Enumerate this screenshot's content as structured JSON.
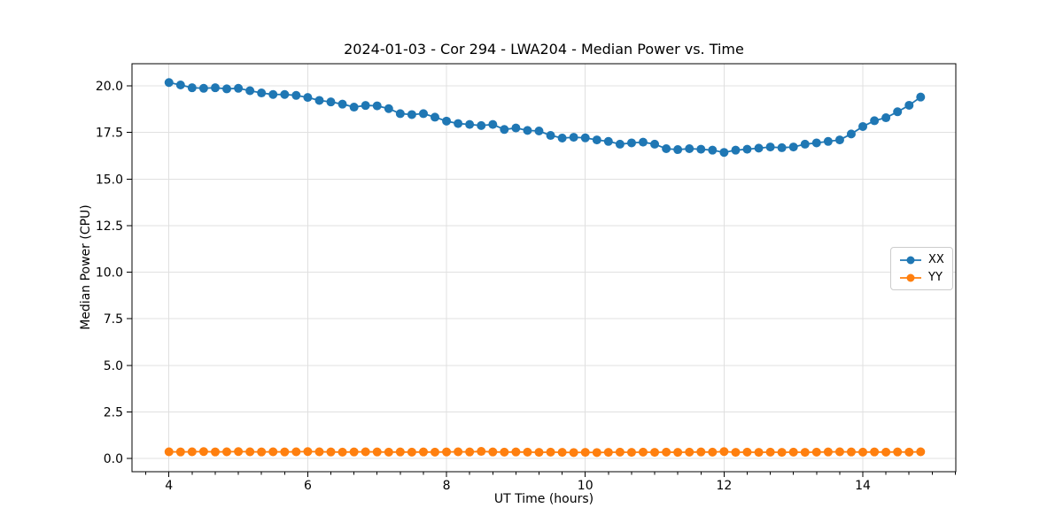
{
  "figure": {
    "background": "#ffffff"
  },
  "chart_data": {
    "type": "line",
    "title": "2024-01-03 - Cor 294 - LWA204 - Median Power vs. Time",
    "xlabel": "UT Time (hours)",
    "ylabel": "Median Power (CPU)",
    "xlim": [
      3.467,
      15.34
    ],
    "ylim": [
      -0.71,
      21.19
    ],
    "xticks": [
      4,
      6,
      8,
      10,
      12,
      14
    ],
    "xtick_labels": [
      "4",
      "6",
      "8",
      "10",
      "12",
      "14"
    ],
    "x_minor_step": 0.33333,
    "yticks": [
      0.0,
      2.5,
      5.0,
      7.5,
      10.0,
      12.5,
      15.0,
      17.5,
      20.0
    ],
    "ytick_labels": [
      "0.0",
      "2.5",
      "5.0",
      "7.5",
      "10.0",
      "12.5",
      "15.0",
      "17.5",
      "20.0"
    ],
    "grid": true,
    "grid_color": "#e0e0e0",
    "spine_color": "#000000",
    "legend_position": "center right",
    "x": [
      4.0,
      4.167,
      4.333,
      4.5,
      4.667,
      4.833,
      5.0,
      5.167,
      5.333,
      5.5,
      5.667,
      5.833,
      6.0,
      6.167,
      6.333,
      6.5,
      6.667,
      6.833,
      7.0,
      7.167,
      7.333,
      7.5,
      7.667,
      7.833,
      8.0,
      8.167,
      8.333,
      8.5,
      8.667,
      8.833,
      9.0,
      9.167,
      9.333,
      9.5,
      9.667,
      9.833,
      10.0,
      10.167,
      10.333,
      10.5,
      10.667,
      10.833,
      11.0,
      11.167,
      11.333,
      11.5,
      11.667,
      11.833,
      12.0,
      12.167,
      12.333,
      12.5,
      12.667,
      12.833,
      13.0,
      13.167,
      13.333,
      13.5,
      13.667,
      13.833,
      14.0,
      14.167,
      14.333,
      14.5,
      14.667,
      14.833
    ],
    "series": [
      {
        "name": "XX",
        "color": "#1f77b4",
        "values": [
          20.18,
          20.05,
          19.9,
          19.87,
          19.9,
          19.84,
          19.87,
          19.74,
          19.62,
          19.54,
          19.54,
          19.49,
          19.38,
          19.22,
          19.14,
          19.02,
          18.86,
          18.95,
          18.93,
          18.78,
          18.51,
          18.46,
          18.51,
          18.32,
          18.11,
          17.98,
          17.93,
          17.87,
          17.93,
          17.66,
          17.74,
          17.61,
          17.58,
          17.34,
          17.2,
          17.24,
          17.21,
          17.1,
          17.02,
          16.87,
          16.94,
          16.98,
          16.87,
          16.63,
          16.58,
          16.63,
          16.6,
          16.55,
          16.43,
          16.55,
          16.6,
          16.66,
          16.72,
          16.68,
          16.72,
          16.87,
          16.94,
          17.02,
          17.1,
          17.42,
          17.82,
          18.13,
          18.29,
          18.61,
          18.96,
          19.4
        ]
      },
      {
        "name": "YY",
        "color": "#ff7f0e",
        "values": [
          0.36,
          0.35,
          0.36,
          0.37,
          0.35,
          0.36,
          0.37,
          0.36,
          0.35,
          0.36,
          0.35,
          0.36,
          0.37,
          0.36,
          0.35,
          0.34,
          0.35,
          0.36,
          0.35,
          0.34,
          0.35,
          0.34,
          0.35,
          0.34,
          0.35,
          0.36,
          0.35,
          0.38,
          0.35,
          0.34,
          0.35,
          0.34,
          0.33,
          0.34,
          0.33,
          0.32,
          0.33,
          0.32,
          0.33,
          0.34,
          0.33,
          0.34,
          0.33,
          0.34,
          0.33,
          0.34,
          0.35,
          0.34,
          0.37,
          0.33,
          0.34,
          0.33,
          0.34,
          0.33,
          0.34,
          0.33,
          0.34,
          0.35,
          0.36,
          0.35,
          0.34,
          0.35,
          0.34,
          0.35,
          0.34,
          0.36
        ]
      }
    ]
  }
}
